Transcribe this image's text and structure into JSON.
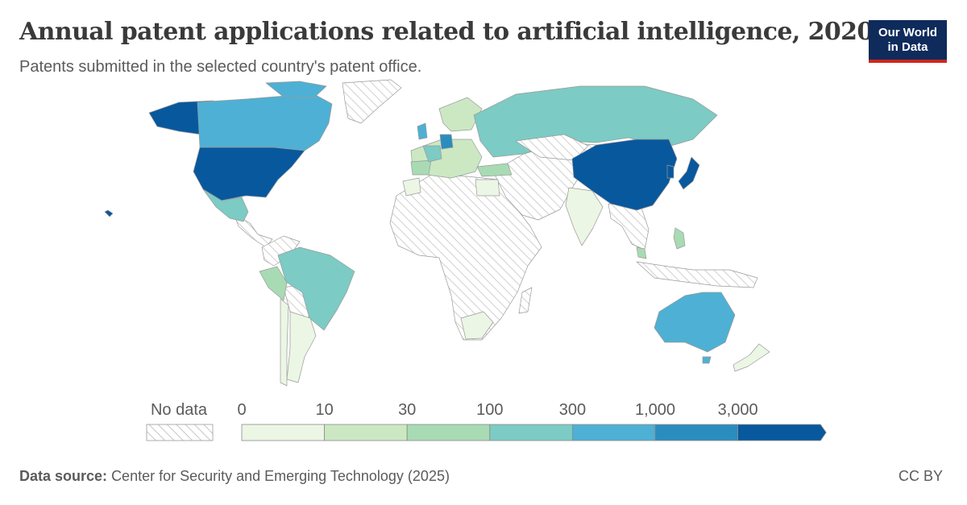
{
  "header": {
    "title": "Annual patent applications related to artificial intelligence, 2020",
    "subtitle": "Patents submitted in the selected country's patent office."
  },
  "logo": {
    "line1": "Our World",
    "line2": "in Data",
    "bg_color": "#0f2b5c",
    "accent_color": "#ce261e"
  },
  "legend": {
    "no_data_label": "No data",
    "tick_labels": [
      "0",
      "10",
      "30",
      "100",
      "300",
      "1,000",
      "3,000"
    ],
    "bins": [
      {
        "range": "0–10",
        "color": "#ebf6e4"
      },
      {
        "range": "10–30",
        "color": "#cbe8c3"
      },
      {
        "range": "30–100",
        "color": "#a8dbb3"
      },
      {
        "range": "100–300",
        "color": "#7ccbc4"
      },
      {
        "range": "300–1,000",
        "color": "#4eb0d4"
      },
      {
        "range": "1,000–3,000",
        "color": "#2b8cbe"
      },
      {
        "range": "3,000+",
        "color": "#08589e"
      }
    ]
  },
  "chart_data": {
    "type": "choropleth",
    "year": "2020",
    "color_scale_breaks": [
      0,
      10,
      30,
      100,
      300,
      1000,
      3000
    ],
    "country_bins": [
      {
        "country": "United States",
        "bin": "3,000+"
      },
      {
        "country": "China",
        "bin": "3,000+"
      },
      {
        "country": "Japan",
        "bin": "3,000+"
      },
      {
        "country": "South Korea",
        "bin": "3,000+"
      },
      {
        "country": "Germany",
        "bin": "1,000–3,000"
      },
      {
        "country": "Canada",
        "bin": "300–1,000"
      },
      {
        "country": "Alaska (United States)",
        "bin": "3,000+"
      },
      {
        "country": "Australia",
        "bin": "300–1,000"
      },
      {
        "country": "United Kingdom",
        "bin": "300–1,000"
      },
      {
        "country": "Russia",
        "bin": "100–300"
      },
      {
        "country": "Brazil",
        "bin": "100–300"
      },
      {
        "country": "Mexico",
        "bin": "100–300"
      },
      {
        "country": "France",
        "bin": "100–300"
      },
      {
        "country": "Spain",
        "bin": "30–100"
      },
      {
        "country": "Turkey",
        "bin": "30–100"
      },
      {
        "country": "Peru",
        "bin": "30–100"
      },
      {
        "country": "India",
        "bin": "10–30"
      },
      {
        "country": "Argentina",
        "bin": "0–10"
      },
      {
        "country": "Chile",
        "bin": "0–10"
      },
      {
        "country": "New Zealand",
        "bin": "0–10"
      }
    ]
  },
  "footer": {
    "source_label": "Data source:",
    "source_text": "Center for Security and Emerging Technology (2025)",
    "license": "CC BY"
  }
}
